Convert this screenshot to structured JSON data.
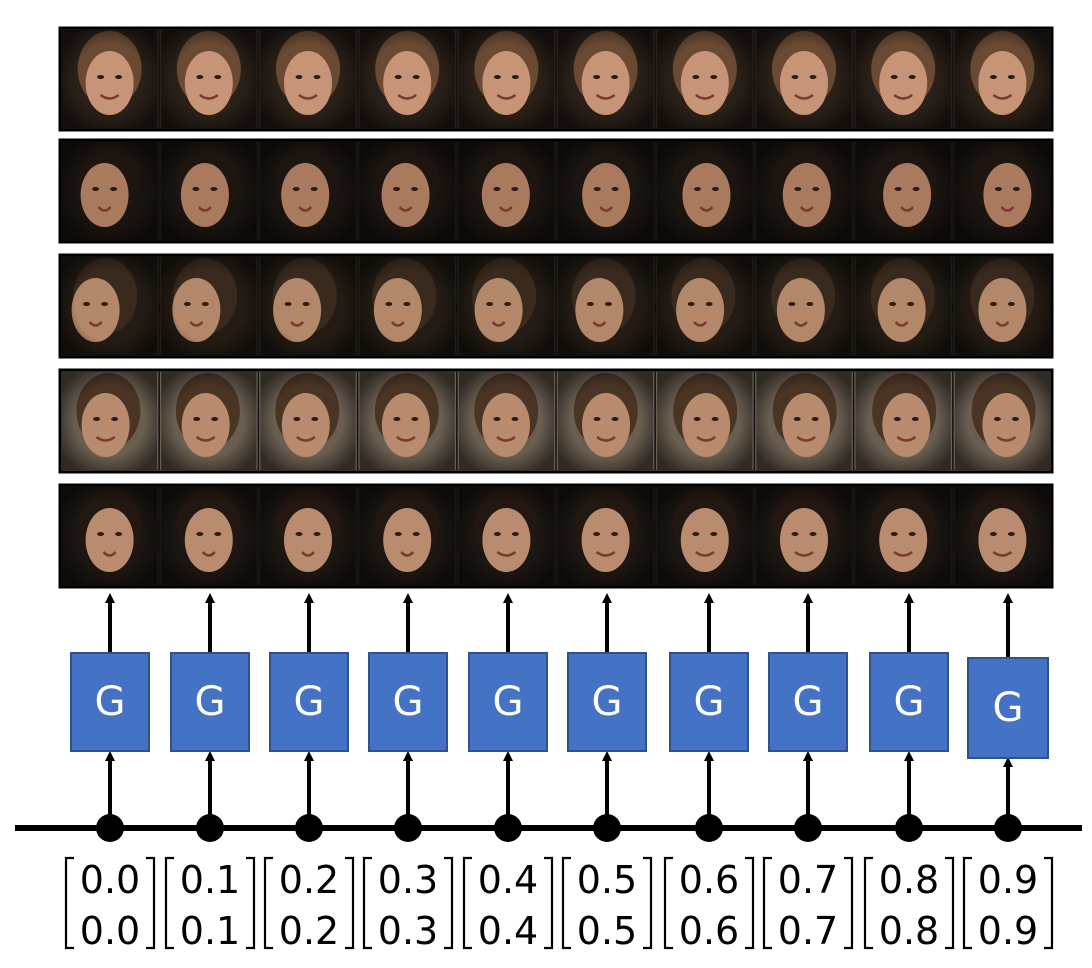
{
  "generator": {
    "label": "G",
    "fill": "#4472C4",
    "stroke": "#2F528F"
  },
  "latent_vectors": [
    [
      "0.0",
      "0.0"
    ],
    [
      "0.1",
      "0.1"
    ],
    [
      "0.2",
      "0.2"
    ],
    [
      "0.3",
      "0.3"
    ],
    [
      "0.4",
      "0.4"
    ],
    [
      "0.5",
      "0.5"
    ],
    [
      "0.6",
      "0.6"
    ],
    [
      "0.7",
      "0.7"
    ],
    [
      "0.8",
      "0.8"
    ],
    [
      "0.9",
      "0.9"
    ]
  ],
  "face_rows": [
    {
      "face": "female",
      "skin": "#c89478",
      "hair": "#6a4a32",
      "bg": "#2a2018"
    },
    {
      "face": "male",
      "skin": "#a97a5e",
      "hair": "#1e1510",
      "bg": "#1a1410"
    },
    {
      "face": "profile",
      "skin": "#b3876a",
      "hair": "#3a2a1e",
      "bg": "#241c14"
    },
    {
      "face": "female",
      "skin": "#b88a6e",
      "hair": "#4a3424",
      "bg": "#6a5e50"
    },
    {
      "face": "male-to-female",
      "skin": "#b98c70",
      "hair": "#231811",
      "bg": "#1c1612"
    }
  ],
  "colors": {
    "line": "#000000",
    "face_frame": "#000000"
  }
}
